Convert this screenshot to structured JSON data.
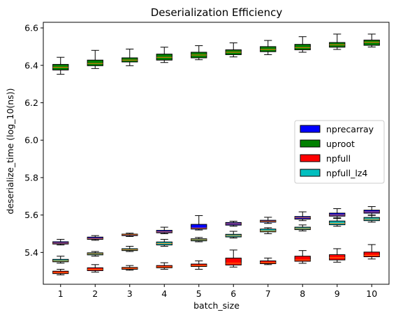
{
  "chart_data": {
    "type": "box",
    "title": "Deserialization Efficiency",
    "xlabel": "batch_size",
    "ylabel": "deserialize_time (log_10(ns))",
    "categories": [
      "1",
      "2",
      "3",
      "4",
      "5",
      "6",
      "7",
      "8",
      "9",
      "10"
    ],
    "ylim": [
      5.23,
      6.63
    ],
    "yticks": [
      5.4,
      5.6,
      5.8,
      6.0,
      6.2,
      6.4,
      6.6
    ],
    "ytick_labels": [
      "5.4",
      "5.6",
      "5.8",
      "6.0",
      "6.2",
      "6.4",
      "6.6"
    ],
    "grid": false,
    "legend_position": "center-right",
    "median_color": "#ff7f0e",
    "series": [
      {
        "name": "nprecarray",
        "color": "#0000ff",
        "boxes": [
          {
            "whislo": 5.44,
            "q1": 5.445,
            "med": 5.45,
            "q3": 5.457,
            "whishi": 5.47
          },
          {
            "whislo": 5.465,
            "q1": 5.47,
            "med": 5.475,
            "q3": 5.482,
            "whishi": 5.49
          },
          {
            "whislo": 5.485,
            "q1": 5.49,
            "med": 5.495,
            "q3": 5.498,
            "whishi": 5.503
          },
          {
            "whislo": 5.5,
            "q1": 5.505,
            "med": 5.51,
            "q3": 5.518,
            "whishi": 5.535
          },
          {
            "whislo": 5.52,
            "q1": 5.525,
            "med": 5.53,
            "q3": 5.55,
            "whishi": 5.597
          },
          {
            "whislo": 5.54,
            "q1": 5.546,
            "med": 5.553,
            "q3": 5.56,
            "whishi": 5.567
          },
          {
            "whislo": 5.555,
            "q1": 5.562,
            "med": 5.567,
            "q3": 5.572,
            "whishi": 5.588
          },
          {
            "whislo": 5.57,
            "q1": 5.578,
            "med": 5.585,
            "q3": 5.592,
            "whishi": 5.617
          },
          {
            "whislo": 5.585,
            "q1": 5.594,
            "med": 5.6,
            "q3": 5.61,
            "whishi": 5.634
          },
          {
            "whislo": 5.6,
            "q1": 5.61,
            "med": 5.617,
            "q3": 5.626,
            "whishi": 5.645
          }
        ]
      },
      {
        "name": "uproot",
        "color": "#008000",
        "boxes": [
          {
            "whislo": 6.352,
            "q1": 6.375,
            "med": 6.39,
            "q3": 6.405,
            "whishi": 6.443
          },
          {
            "whislo": 6.383,
            "q1": 6.398,
            "med": 6.41,
            "q3": 6.428,
            "whishi": 6.48
          },
          {
            "whislo": 6.398,
            "q1": 6.418,
            "med": 6.428,
            "q3": 6.44,
            "whishi": 6.487
          },
          {
            "whislo": 6.415,
            "q1": 6.428,
            "med": 6.443,
            "q3": 6.46,
            "whishi": 6.497
          },
          {
            "whislo": 6.43,
            "q1": 6.44,
            "med": 6.455,
            "q3": 6.47,
            "whishi": 6.505
          },
          {
            "whislo": 6.445,
            "q1": 6.457,
            "med": 6.47,
            "q3": 6.483,
            "whishi": 6.52
          },
          {
            "whislo": 6.457,
            "q1": 6.473,
            "med": 6.485,
            "q3": 6.5,
            "whishi": 6.533
          },
          {
            "whislo": 6.47,
            "q1": 6.483,
            "med": 6.495,
            "q3": 6.512,
            "whishi": 6.553
          },
          {
            "whislo": 6.485,
            "q1": 6.497,
            "med": 6.51,
            "q3": 6.522,
            "whishi": 6.567
          },
          {
            "whislo": 6.498,
            "q1": 6.507,
            "med": 6.523,
            "q3": 6.535,
            "whishi": 6.567
          }
        ]
      },
      {
        "name": "npfull",
        "color": "#ff0000",
        "boxes": [
          {
            "whislo": 5.28,
            "q1": 5.287,
            "med": 5.293,
            "q3": 5.3,
            "whishi": 5.31
          },
          {
            "whislo": 5.295,
            "q1": 5.303,
            "med": 5.31,
            "q3": 5.318,
            "whishi": 5.335
          },
          {
            "whislo": 5.305,
            "q1": 5.31,
            "med": 5.315,
            "q3": 5.32,
            "whishi": 5.33
          },
          {
            "whislo": 5.31,
            "q1": 5.318,
            "med": 5.323,
            "q3": 5.33,
            "whishi": 5.345
          },
          {
            "whislo": 5.31,
            "q1": 5.325,
            "med": 5.33,
            "q3": 5.338,
            "whishi": 5.355
          },
          {
            "whislo": 5.322,
            "q1": 5.333,
            "med": 5.342,
            "q3": 5.37,
            "whishi": 5.413
          },
          {
            "whislo": 5.335,
            "q1": 5.34,
            "med": 5.346,
            "q3": 5.355,
            "whishi": 5.37
          },
          {
            "whislo": 5.342,
            "q1": 5.353,
            "med": 5.36,
            "q3": 5.38,
            "whishi": 5.41
          },
          {
            "whislo": 5.348,
            "q1": 5.36,
            "med": 5.372,
            "q3": 5.388,
            "whishi": 5.42
          },
          {
            "whislo": 5.365,
            "q1": 5.377,
            "med": 5.385,
            "q3": 5.402,
            "whishi": 5.442
          }
        ]
      },
      {
        "name": "npfull_lz4",
        "color": "#00bfbf",
        "boxes": [
          {
            "whislo": 5.343,
            "q1": 5.35,
            "med": 5.355,
            "q3": 5.363,
            "whishi": 5.38
          },
          {
            "whislo": 5.38,
            "q1": 5.387,
            "med": 5.393,
            "q3": 5.398,
            "whishi": 5.405
          },
          {
            "whislo": 5.405,
            "q1": 5.41,
            "med": 5.415,
            "q3": 5.42,
            "whishi": 5.433
          },
          {
            "whislo": 5.433,
            "q1": 5.44,
            "med": 5.448,
            "q3": 5.456,
            "whishi": 5.47
          },
          {
            "whislo": 5.457,
            "q1": 5.462,
            "med": 5.468,
            "q3": 5.473,
            "whishi": 5.48
          },
          {
            "whislo": 5.477,
            "q1": 5.483,
            "med": 5.49,
            "q3": 5.497,
            "whishi": 5.513
          },
          {
            "whislo": 5.5,
            "q1": 5.51,
            "med": 5.515,
            "q3": 5.525,
            "whishi": 5.532
          },
          {
            "whislo": 5.515,
            "q1": 5.522,
            "med": 5.528,
            "q3": 5.535,
            "whishi": 5.547
          },
          {
            "whislo": 5.54,
            "q1": 5.548,
            "med": 5.556,
            "q3": 5.568,
            "whishi": 5.582
          },
          {
            "whislo": 5.562,
            "q1": 5.57,
            "med": 5.577,
            "q3": 5.587,
            "whishi": 5.598
          }
        ]
      }
    ]
  }
}
